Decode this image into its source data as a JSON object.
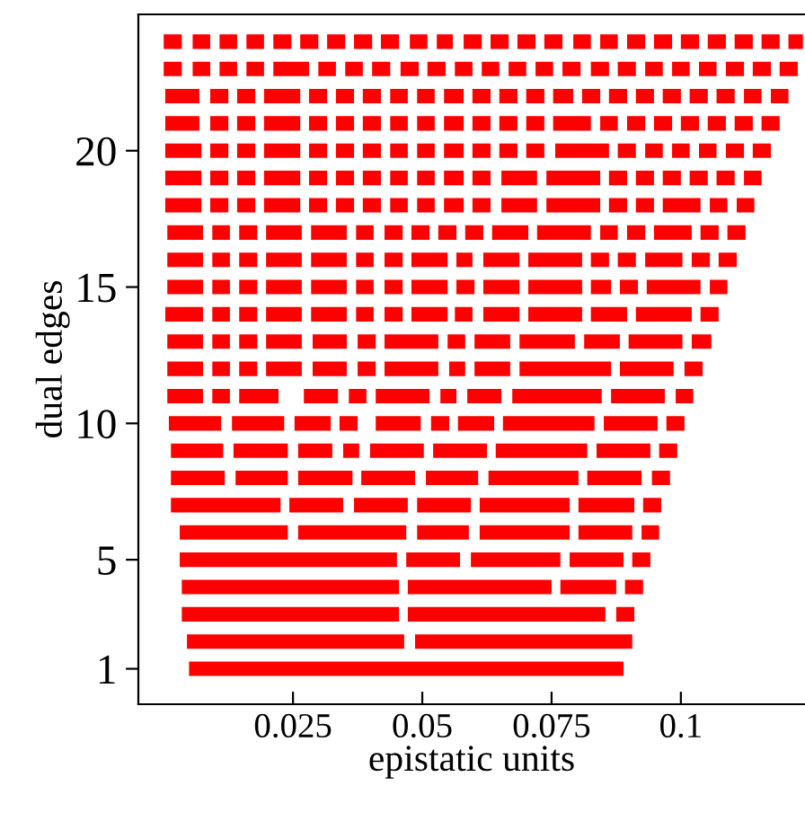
{
  "chart_data": {
    "type": "line",
    "xlabel": "epistatic units",
    "ylabel": "dual edges",
    "xlim": [
      -0.0049,
      0.124
    ],
    "ylim": [
      -0.3,
      25
    ],
    "xticks": [
      0.025,
      0.05,
      0.075,
      0.1
    ],
    "yticks": [
      1,
      5,
      10,
      15,
      20
    ],
    "grid": false,
    "legend": false,
    "marker": "none",
    "line_style": "solid",
    "series": [
      {
        "color": "#ff0000",
        "x": [
          0.0049,
          0.0889
        ],
        "values": [
          1,
          1
        ]
      },
      {
        "color": "#ff0000",
        "x": [
          0.0045,
          0.0465,
          null,
          0.0486,
          0.0906
        ],
        "values": [
          2,
          2,
          null,
          2,
          2
        ]
      },
      {
        "color": "#ff0000",
        "x": [
          0.0035,
          0.0455,
          null,
          0.0472,
          0.0854,
          null,
          0.0875,
          0.091
        ],
        "values": [
          3,
          3,
          null,
          3,
          3,
          null,
          3,
          3
        ]
      },
      {
        "color": "#ff0000",
        "x": [
          0.0035,
          0.0455,
          null,
          0.0472,
          0.075,
          null,
          0.0767,
          0.0875,
          null,
          0.0892,
          0.0927
        ],
        "values": [
          4,
          4,
          null,
          4,
          4,
          null,
          4,
          4,
          null,
          4,
          4
        ]
      },
      {
        "color": "#ff0000",
        "x": [
          0.0031,
          0.0451,
          null,
          0.0469,
          0.0573,
          null,
          0.0594,
          0.0767,
          null,
          0.0785,
          0.0889,
          null,
          0.0906,
          0.0941
        ],
        "values": [
          5,
          5,
          null,
          5,
          5,
          null,
          5,
          5,
          null,
          5,
          5,
          null,
          5,
          5
        ]
      },
      {
        "color": "#ff0000",
        "x": [
          0.0031,
          0.024,
          null,
          0.026,
          0.0469,
          null,
          0.049,
          0.059,
          null,
          0.0611,
          0.0785,
          null,
          0.0802,
          0.0906,
          null,
          0.0924,
          0.0958
        ],
        "values": [
          6,
          6,
          null,
          6,
          6,
          null,
          6,
          6,
          null,
          6,
          6,
          null,
          6,
          6,
          null,
          6,
          6
        ]
      },
      {
        "color": "#ff0000",
        "x": [
          0.0014,
          0.0226,
          null,
          0.0243,
          0.0347,
          null,
          0.0368,
          0.0472,
          null,
          0.049,
          0.0594,
          null,
          0.0611,
          0.0785,
          null,
          0.0802,
          0.091,
          null,
          0.0927,
          0.0962
        ],
        "values": [
          7,
          7,
          null,
          7,
          7,
          null,
          7,
          7,
          null,
          7,
          7,
          null,
          7,
          7,
          null,
          7,
          7,
          null,
          7,
          7
        ]
      },
      {
        "color": "#ff0000",
        "x": [
          0.0014,
          0.0118,
          null,
          0.0139,
          0.024,
          null,
          0.026,
          0.0365,
          null,
          0.0382,
          0.0486,
          null,
          0.0507,
          0.0608,
          null,
          0.0628,
          0.0802,
          null,
          0.0819,
          0.0924,
          null,
          0.0944,
          0.0979
        ],
        "values": [
          8,
          8,
          null,
          8,
          8,
          null,
          8,
          8,
          null,
          8,
          8,
          null,
          8,
          8,
          null,
          8,
          8,
          null,
          8,
          8,
          null,
          8,
          8
        ]
      },
      {
        "color": "#ff0000",
        "x": [
          0.0014,
          0.0115,
          null,
          0.0135,
          0.024,
          null,
          0.026,
          0.0326,
          null,
          0.0347,
          0.0378,
          null,
          0.0399,
          0.0503,
          null,
          0.0521,
          0.0625,
          null,
          0.0642,
          0.0819,
          null,
          0.0837,
          0.0941,
          null,
          0.0958,
          0.0993
        ],
        "values": [
          9,
          9,
          null,
          9,
          9,
          null,
          9,
          9,
          null,
          9,
          9,
          null,
          9,
          9,
          null,
          9,
          9,
          null,
          9,
          9,
          null,
          9,
          9,
          null,
          9,
          9
        ]
      },
      {
        "color": "#ff0000",
        "x": [
          0.001,
          0.0111,
          null,
          0.0132,
          0.0233,
          null,
          0.0253,
          0.0323,
          null,
          0.034,
          0.0375,
          null,
          0.041,
          0.0497,
          null,
          0.0517,
          0.0552,
          null,
          0.0569,
          0.0639,
          null,
          0.0656,
          0.0833,
          null,
          0.0851,
          0.0955,
          null,
          0.0972,
          0.1007
        ],
        "values": [
          10,
          10,
          null,
          10,
          10,
          null,
          10,
          10,
          null,
          10,
          10,
          null,
          10,
          10,
          null,
          10,
          10,
          null,
          10,
          10,
          null,
          10,
          10,
          null,
          10,
          10,
          null,
          10,
          10
        ]
      },
      {
        "color": "#ff0000",
        "x": [
          0.0007,
          0.0076,
          null,
          0.0094,
          0.0128,
          null,
          0.0146,
          0.0222,
          null,
          0.0271,
          0.0337,
          null,
          0.0358,
          0.0392,
          null,
          0.041,
          0.0514,
          null,
          0.0535,
          0.0566,
          null,
          0.0587,
          0.0653,
          null,
          0.0674,
          0.0847,
          null,
          0.0865,
          0.0969,
          null,
          0.099,
          0.1024
        ],
        "values": [
          11,
          11,
          null,
          11,
          11,
          null,
          11,
          11,
          null,
          11,
          11,
          null,
          11,
          11,
          null,
          11,
          11,
          null,
          11,
          11,
          null,
          11,
          11,
          null,
          11,
          11,
          null,
          11,
          11,
          null,
          11,
          11
        ]
      },
      {
        "color": "#ff0000",
        "x": [
          0.0007,
          0.0076,
          null,
          0.0094,
          0.0128,
          null,
          0.0146,
          0.0181,
          null,
          0.0198,
          0.0267,
          null,
          0.0288,
          0.0354,
          null,
          0.0375,
          0.041,
          null,
          0.0427,
          0.0531,
          null,
          0.0552,
          0.0583,
          null,
          0.0601,
          0.067,
          null,
          0.0688,
          0.0865,
          null,
          0.0882,
          0.0986,
          null,
          0.1007,
          0.1042
        ],
        "values": [
          12,
          12,
          null,
          12,
          12,
          null,
          12,
          12,
          null,
          12,
          12,
          null,
          12,
          12,
          null,
          12,
          12,
          null,
          12,
          12,
          null,
          12,
          12,
          null,
          12,
          12,
          null,
          12,
          12,
          null,
          12,
          12,
          null,
          12,
          12
        ]
      },
      {
        "color": "#ff0000",
        "x": [
          0.0007,
          0.0076,
          null,
          0.0094,
          0.0128,
          null,
          0.0146,
          0.0181,
          null,
          0.0198,
          0.0267,
          null,
          0.0288,
          0.0354,
          null,
          0.0375,
          0.041,
          null,
          0.0427,
          0.0531,
          null,
          0.0549,
          0.0583,
          null,
          0.0601,
          0.067,
          null,
          0.0688,
          0.0795,
          null,
          0.0813,
          0.0882,
          null,
          0.0899,
          0.1003,
          null,
          0.1021,
          0.1059
        ],
        "values": [
          13,
          13,
          null,
          13,
          13,
          null,
          13,
          13,
          null,
          13,
          13,
          null,
          13,
          13,
          null,
          13,
          13,
          null,
          13,
          13,
          null,
          13,
          13,
          null,
          13,
          13,
          null,
          13,
          13,
          null,
          13,
          13,
          null,
          13,
          13,
          null,
          13,
          13
        ]
      },
      {
        "color": "#ff0000",
        "x": [
          0.0003,
          0.0076,
          null,
          0.0094,
          0.0128,
          null,
          0.0146,
          0.0181,
          null,
          0.0198,
          0.0267,
          null,
          0.0285,
          0.0354,
          null,
          0.0372,
          0.0406,
          null,
          0.0427,
          0.0462,
          null,
          0.0479,
          0.0549,
          null,
          0.0563,
          0.0597,
          null,
          0.0618,
          0.0688,
          null,
          0.0705,
          0.0809,
          null,
          0.0826,
          0.0896,
          null,
          0.0913,
          0.1021,
          null,
          0.1038,
          0.1073
        ],
        "values": [
          14,
          14,
          null,
          14,
          14,
          null,
          14,
          14,
          null,
          14,
          14,
          null,
          14,
          14,
          null,
          14,
          14,
          null,
          14,
          14,
          null,
          14,
          14,
          null,
          14,
          14,
          null,
          14,
          14,
          null,
          14,
          14,
          null,
          14,
          14,
          null,
          14,
          14,
          null,
          14,
          14
        ]
      },
      {
        "color": "#ff0000",
        "x": [
          0.0007,
          0.0076,
          null,
          0.0094,
          0.0128,
          null,
          0.0146,
          0.0181,
          null,
          0.0198,
          0.0267,
          null,
          0.0285,
          0.0354,
          null,
          0.0372,
          0.0406,
          null,
          0.0427,
          0.0462,
          null,
          0.0479,
          0.0549,
          null,
          0.0566,
          0.0601,
          null,
          0.0618,
          0.0688,
          null,
          0.0705,
          0.0809,
          null,
          0.0826,
          0.0865,
          null,
          0.0882,
          0.0917,
          null,
          0.0934,
          0.1038,
          null,
          0.1056,
          0.109
        ],
        "values": [
          15,
          15,
          null,
          15,
          15,
          null,
          15,
          15,
          null,
          15,
          15,
          null,
          15,
          15,
          null,
          15,
          15,
          null,
          15,
          15,
          null,
          15,
          15,
          null,
          15,
          15,
          null,
          15,
          15,
          null,
          15,
          15,
          null,
          15,
          15,
          null,
          15,
          15,
          null,
          15,
          15,
          null,
          15,
          15
        ]
      },
      {
        "color": "#ff0000",
        "x": [
          0.0007,
          0.0076,
          null,
          0.0094,
          0.0128,
          null,
          0.0146,
          0.0181,
          null,
          0.0198,
          0.0267,
          null,
          0.0285,
          0.0354,
          null,
          0.0372,
          0.0406,
          null,
          0.0427,
          0.0462,
          null,
          0.0479,
          0.0549,
          null,
          0.0566,
          0.0597,
          null,
          0.0618,
          0.0688,
          null,
          0.0705,
          0.0809,
          null,
          0.0826,
          0.0861,
          null,
          0.0878,
          0.0913,
          null,
          0.0931,
          0.1003,
          null,
          0.1021,
          0.1056,
          null,
          0.1073,
          0.1108
        ],
        "values": [
          16,
          16,
          null,
          16,
          16,
          null,
          16,
          16,
          null,
          16,
          16,
          null,
          16,
          16,
          null,
          16,
          16,
          null,
          16,
          16,
          null,
          16,
          16,
          null,
          16,
          16,
          null,
          16,
          16,
          null,
          16,
          16,
          null,
          16,
          16,
          null,
          16,
          16,
          null,
          16,
          16,
          null,
          16,
          16,
          null,
          16,
          16
        ]
      },
      {
        "color": "#ff0000",
        "x": [
          0.0007,
          0.0076,
          null,
          0.0094,
          0.0128,
          null,
          0.0146,
          0.0181,
          null,
          0.0198,
          0.0267,
          null,
          0.0285,
          0.0354,
          null,
          0.0372,
          0.0406,
          null,
          0.0427,
          0.0462,
          null,
          0.0479,
          0.0514,
          null,
          0.0531,
          0.0566,
          null,
          0.0583,
          0.0618,
          null,
          0.0635,
          0.0705,
          null,
          0.0722,
          0.0826,
          null,
          0.0844,
          0.0878,
          null,
          0.0896,
          0.0931,
          null,
          0.0948,
          0.1021,
          null,
          0.1038,
          0.1073,
          null,
          0.109,
          0.1125
        ],
        "values": [
          17,
          17,
          null,
          17,
          17,
          null,
          17,
          17,
          null,
          17,
          17,
          null,
          17,
          17,
          null,
          17,
          17,
          null,
          17,
          17,
          null,
          17,
          17,
          null,
          17,
          17,
          null,
          17,
          17,
          null,
          17,
          17,
          null,
          17,
          17,
          null,
          17,
          17,
          null,
          17,
          17,
          null,
          17,
          17,
          null,
          17,
          17,
          null,
          17,
          17
        ]
      },
      {
        "color": "#ff0000",
        "x": [
          0.0003,
          0.0073,
          null,
          0.009,
          0.0125,
          null,
          0.0142,
          0.0177,
          null,
          0.0194,
          0.0264,
          null,
          0.0281,
          0.0316,
          null,
          0.0333,
          0.0368,
          null,
          0.0385,
          0.042,
          null,
          0.0438,
          0.0472,
          null,
          0.049,
          0.0524,
          null,
          0.0542,
          0.058,
          null,
          0.0597,
          0.0632,
          null,
          0.0653,
          0.0722,
          null,
          0.074,
          0.0844,
          null,
          0.0861,
          0.0896,
          null,
          0.0913,
          0.0948,
          null,
          0.0965,
          0.1038,
          null,
          0.1056,
          0.109,
          null,
          0.1108,
          0.1142
        ],
        "values": [
          18,
          18,
          null,
          18,
          18,
          null,
          18,
          18,
          null,
          18,
          18,
          null,
          18,
          18,
          null,
          18,
          18,
          null,
          18,
          18,
          null,
          18,
          18,
          null,
          18,
          18,
          null,
          18,
          18,
          null,
          18,
          18,
          null,
          18,
          18,
          null,
          18,
          18,
          null,
          18,
          18,
          null,
          18,
          18,
          null,
          18,
          18,
          null,
          18,
          18,
          null,
          18,
          18
        ]
      },
      {
        "color": "#ff0000",
        "x": [
          0.0003,
          0.0073,
          null,
          0.009,
          0.0125,
          null,
          0.0142,
          0.0177,
          null,
          0.0194,
          0.0264,
          null,
          0.0281,
          0.0316,
          null,
          0.0333,
          0.0368,
          null,
          0.0385,
          0.042,
          null,
          0.0438,
          0.0472,
          null,
          0.049,
          0.0524,
          null,
          0.0542,
          0.058,
          null,
          0.0597,
          0.0632,
          null,
          0.0653,
          0.0722,
          null,
          0.074,
          0.0844,
          null,
          0.0861,
          0.0896,
          null,
          0.0913,
          0.0948,
          null,
          0.0965,
          0.1,
          null,
          0.1017,
          0.1052,
          null,
          0.1069,
          0.1104,
          null,
          0.1122,
          0.1156
        ],
        "values": [
          19,
          19,
          null,
          19,
          19,
          null,
          19,
          19,
          null,
          19,
          19,
          null,
          19,
          19,
          null,
          19,
          19,
          null,
          19,
          19,
          null,
          19,
          19,
          null,
          19,
          19,
          null,
          19,
          19,
          null,
          19,
          19,
          null,
          19,
          19,
          null,
          19,
          19,
          null,
          19,
          19,
          null,
          19,
          19,
          null,
          19,
          19,
          null,
          19,
          19,
          null,
          19,
          19,
          null,
          19,
          19
        ]
      },
      {
        "color": "#ff0000",
        "x": [
          0.0003,
          0.0073,
          null,
          0.009,
          0.0125,
          null,
          0.0142,
          0.0177,
          null,
          0.0194,
          0.0264,
          null,
          0.0281,
          0.0316,
          null,
          0.0333,
          0.0368,
          null,
          0.0385,
          0.042,
          null,
          0.0438,
          0.0472,
          null,
          0.049,
          0.0524,
          null,
          0.0542,
          0.058,
          null,
          0.0597,
          0.0632,
          null,
          0.0649,
          0.0684,
          null,
          0.0701,
          0.0736,
          null,
          0.0757,
          0.0861,
          null,
          0.0878,
          0.0913,
          null,
          0.0931,
          0.0965,
          null,
          0.0983,
          0.1017,
          null,
          0.1035,
          0.1069,
          null,
          0.1087,
          0.1122,
          null,
          0.1139,
          0.1174
        ],
        "values": [
          20,
          20,
          null,
          20,
          20,
          null,
          20,
          20,
          null,
          20,
          20,
          null,
          20,
          20,
          null,
          20,
          20,
          null,
          20,
          20,
          null,
          20,
          20,
          null,
          20,
          20,
          null,
          20,
          20,
          null,
          20,
          20,
          null,
          20,
          20,
          null,
          20,
          20,
          null,
          20,
          20,
          null,
          20,
          20,
          null,
          20,
          20,
          null,
          20,
          20,
          null,
          20,
          20,
          null,
          20,
          20,
          null,
          20,
          20
        ]
      },
      {
        "color": "#ff0000",
        "x": [
          0.0003,
          0.0069,
          null,
          0.009,
          0.0125,
          null,
          0.0142,
          0.0177,
          null,
          0.0194,
          0.0264,
          null,
          0.0281,
          0.0316,
          null,
          0.0333,
          0.0368,
          null,
          0.0385,
          0.042,
          null,
          0.0438,
          0.0472,
          null,
          0.049,
          0.0524,
          null,
          0.0542,
          0.058,
          null,
          0.0597,
          0.0632,
          null,
          0.0649,
          0.0684,
          null,
          0.0701,
          0.0736,
          null,
          0.0753,
          0.0826,
          null,
          0.0844,
          0.0878,
          null,
          0.0896,
          0.0931,
          null,
          0.0948,
          0.0983,
          null,
          0.1,
          0.1035,
          null,
          0.1052,
          0.1087,
          null,
          0.1104,
          0.1139,
          null,
          0.1156,
          0.1191
        ],
        "values": [
          21,
          21,
          null,
          21,
          21,
          null,
          21,
          21,
          null,
          21,
          21,
          null,
          21,
          21,
          null,
          21,
          21,
          null,
          21,
          21,
          null,
          21,
          21,
          null,
          21,
          21,
          null,
          21,
          21,
          null,
          21,
          21,
          null,
          21,
          21,
          null,
          21,
          21,
          null,
          21,
          21,
          null,
          21,
          21,
          null,
          21,
          21,
          null,
          21,
          21,
          null,
          21,
          21,
          null,
          21,
          21,
          null,
          21,
          21,
          null,
          21,
          21
        ]
      },
      {
        "color": "#ff0000",
        "x": [
          0.0003,
          0.0069,
          null,
          0.009,
          0.0125,
          null,
          0.0142,
          0.0177,
          null,
          0.0194,
          0.0264,
          null,
          0.0281,
          0.0316,
          null,
          0.0333,
          0.0368,
          null,
          0.0385,
          0.042,
          null,
          0.0438,
          0.0472,
          null,
          0.049,
          0.0524,
          null,
          0.0542,
          0.058,
          null,
          0.0597,
          0.0632,
          null,
          0.0649,
          0.0684,
          null,
          0.0701,
          0.0736,
          null,
          0.0753,
          0.0792,
          null,
          0.0809,
          0.0844,
          null,
          0.0861,
          0.0896,
          null,
          0.0913,
          0.0948,
          null,
          0.0965,
          0.1,
          null,
          0.1017,
          0.1052,
          null,
          0.1069,
          0.1104,
          null,
          0.1122,
          0.1156,
          null,
          0.1174,
          0.1208
        ],
        "values": [
          22,
          22,
          null,
          22,
          22,
          null,
          22,
          22,
          null,
          22,
          22,
          null,
          22,
          22,
          null,
          22,
          22,
          null,
          22,
          22,
          null,
          22,
          22,
          null,
          22,
          22,
          null,
          22,
          22,
          null,
          22,
          22,
          null,
          22,
          22,
          null,
          22,
          22,
          null,
          22,
          22,
          null,
          22,
          22,
          null,
          22,
          22,
          null,
          22,
          22,
          null,
          22,
          22,
          null,
          22,
          22,
          null,
          22,
          22,
          null,
          22,
          22,
          null,
          22,
          22
        ]
      },
      {
        "color": "#ff0000",
        "x": [
          0.0,
          0.0035,
          null,
          0.0056,
          0.009,
          null,
          0.0108,
          0.0142,
          null,
          0.016,
          0.0194,
          null,
          0.0212,
          0.0281,
          null,
          0.0299,
          0.0333,
          null,
          0.0351,
          0.0385,
          null,
          0.0403,
          0.0438,
          null,
          0.0458,
          0.0493,
          null,
          0.051,
          0.0545,
          null,
          0.0563,
          0.0597,
          null,
          0.0615,
          0.0649,
          null,
          0.0667,
          0.0701,
          null,
          0.0719,
          0.0753,
          null,
          0.0771,
          0.0806,
          null,
          0.0826,
          0.0861,
          null,
          0.0878,
          0.0913,
          null,
          0.0931,
          0.0965,
          null,
          0.0983,
          0.1017,
          null,
          0.1035,
          0.1069,
          null,
          0.1087,
          0.1122,
          null,
          0.1139,
          0.1174,
          null,
          0.1191,
          0.1226
        ],
        "values": [
          23,
          23,
          null,
          23,
          23,
          null,
          23,
          23,
          null,
          23,
          23,
          null,
          23,
          23,
          null,
          23,
          23,
          null,
          23,
          23,
          null,
          23,
          23,
          null,
          23,
          23,
          null,
          23,
          23,
          null,
          23,
          23,
          null,
          23,
          23,
          null,
          23,
          23,
          null,
          23,
          23,
          null,
          23,
          23,
          null,
          23,
          23,
          null,
          23,
          23,
          null,
          23,
          23,
          null,
          23,
          23,
          null,
          23,
          23,
          null,
          23,
          23,
          null,
          23,
          23,
          null,
          23,
          23
        ]
      },
      {
        "color": "#ff0000",
        "x": [
          0.0,
          0.0035,
          null,
          0.0056,
          0.009,
          null,
          0.0108,
          0.0142,
          null,
          0.016,
          0.0194,
          null,
          0.0212,
          0.0247,
          null,
          0.0264,
          0.0299,
          null,
          0.0316,
          0.0351,
          null,
          0.0368,
          0.0403,
          null,
          0.042,
          0.0455,
          null,
          0.0476,
          0.051,
          null,
          0.0528,
          0.0559,
          null,
          0.058,
          0.0615,
          null,
          0.0632,
          0.0667,
          null,
          0.0684,
          0.0719,
          null,
          0.0736,
          0.0771,
          null,
          0.0792,
          0.0826,
          null,
          0.0844,
          0.0878,
          null,
          0.0896,
          0.0931,
          null,
          0.0948,
          0.0983,
          null,
          0.1,
          0.1035,
          null,
          0.1052,
          0.1087,
          null,
          0.1104,
          0.1139,
          null,
          0.1156,
          0.1191,
          null,
          0.1208,
          0.1236
        ],
        "values": [
          24,
          24,
          null,
          24,
          24,
          null,
          24,
          24,
          null,
          24,
          24,
          null,
          24,
          24,
          null,
          24,
          24,
          null,
          24,
          24,
          null,
          24,
          24,
          null,
          24,
          24,
          null,
          24,
          24,
          null,
          24,
          24,
          null,
          24,
          24,
          null,
          24,
          24,
          null,
          24,
          24,
          null,
          24,
          24,
          null,
          24,
          24,
          null,
          24,
          24,
          null,
          24,
          24,
          null,
          24,
          24,
          null,
          24,
          24,
          null,
          24,
          24,
          null,
          24,
          24,
          null,
          24,
          24,
          null,
          24,
          24
        ]
      }
    ]
  }
}
